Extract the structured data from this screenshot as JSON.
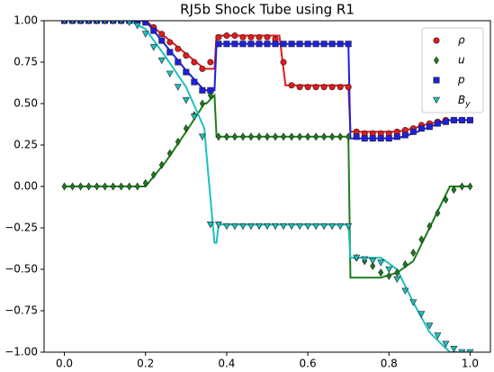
{
  "chart_data": {
    "type": "scatter",
    "title": "RJ5b Shock Tube using R1",
    "xlim": [
      -0.05,
      1.05
    ],
    "ylim": [
      -1,
      1
    ],
    "xticks": [
      {
        "value": 0,
        "label": "0.0"
      },
      {
        "value": 0.2,
        "label": "0.2"
      },
      {
        "value": 0.4,
        "label": "0.4"
      },
      {
        "value": 0.6,
        "label": "0.6"
      },
      {
        "value": 0.8,
        "label": "0.8"
      },
      {
        "value": 1,
        "label": "1.0"
      }
    ],
    "yticks": [
      {
        "value": -1,
        "label": "−1.00"
      },
      {
        "value": -0.75,
        "label": "−0.75"
      },
      {
        "value": -0.5,
        "label": "−0.50"
      },
      {
        "value": -0.25,
        "label": "−0.25"
      },
      {
        "value": 0,
        "label": "0.00"
      },
      {
        "value": 0.25,
        "label": "0.25"
      },
      {
        "value": 0.5,
        "label": "0.50"
      },
      {
        "value": 0.75,
        "label": "0.75"
      },
      {
        "value": 1,
        "label": "1.00"
      }
    ],
    "legend": "upper right",
    "x": [
      0,
      0.02,
      0.04,
      0.06,
      0.08,
      0.1,
      0.12,
      0.14,
      0.16,
      0.18,
      0.2,
      0.22,
      0.24,
      0.26,
      0.28,
      0.3,
      0.32,
      0.34,
      0.36,
      0.38,
      0.4,
      0.42,
      0.44,
      0.46,
      0.48,
      0.5,
      0.52,
      0.54,
      0.56,
      0.58,
      0.6,
      0.62,
      0.64,
      0.66,
      0.68,
      0.7,
      0.72,
      0.74,
      0.76,
      0.78,
      0.8,
      0.82,
      0.84,
      0.86,
      0.88,
      0.9,
      0.92,
      0.94,
      0.96,
      0.98,
      1
    ],
    "series": [
      {
        "name": "ρ",
        "color": "#e41a1c",
        "marker": "circle",
        "values": [
          1,
          1,
          1,
          1,
          1,
          1,
          1,
          1,
          1,
          1,
          0.99,
          0.96,
          0.92,
          0.87,
          0.83,
          0.79,
          0.75,
          0.71,
          0.75,
          0.9,
          0.91,
          0.91,
          0.9,
          0.9,
          0.9,
          0.9,
          0.89,
          0.75,
          0.61,
          0.6,
          0.6,
          0.6,
          0.6,
          0.6,
          0.6,
          0.6,
          0.33,
          0.32,
          0.32,
          0.32,
          0.32,
          0.33,
          0.34,
          0.35,
          0.37,
          0.38,
          0.39,
          0.4,
          0.4,
          0.4,
          0.4
        ]
      },
      {
        "name": "u",
        "color": "#1a7f1a",
        "marker": "diamond",
        "values": [
          0,
          0,
          0,
          0,
          0,
          0,
          0,
          0,
          0,
          0,
          0.02,
          0.07,
          0.13,
          0.2,
          0.27,
          0.35,
          0.43,
          0.5,
          0.55,
          0.3,
          0.3,
          0.3,
          0.3,
          0.3,
          0.3,
          0.3,
          0.3,
          0.3,
          0.3,
          0.3,
          0.3,
          0.3,
          0.3,
          0.3,
          0.3,
          0.3,
          -0.43,
          -0.45,
          -0.48,
          -0.52,
          -0.54,
          -0.52,
          -0.47,
          -0.4,
          -0.32,
          -0.24,
          -0.16,
          -0.08,
          -0.02,
          0,
          0
        ]
      },
      {
        "name": "p",
        "color": "#1f1fe0",
        "marker": "square",
        "values": [
          1,
          1,
          1,
          1,
          1,
          1,
          1,
          1,
          1,
          1,
          0.99,
          0.94,
          0.88,
          0.81,
          0.75,
          0.69,
          0.63,
          0.58,
          0.58,
          0.86,
          0.86,
          0.86,
          0.86,
          0.86,
          0.86,
          0.86,
          0.86,
          0.86,
          0.86,
          0.86,
          0.86,
          0.86,
          0.86,
          0.86,
          0.86,
          0.86,
          0.3,
          0.29,
          0.29,
          0.29,
          0.29,
          0.3,
          0.31,
          0.33,
          0.35,
          0.36,
          0.38,
          0.39,
          0.4,
          0.4,
          0.4
        ]
      },
      {
        "name": "B_y",
        "color": "#1fbfbf",
        "marker": "triangle",
        "values": [
          1,
          1,
          1,
          1,
          1,
          1,
          1,
          1,
          0.99,
          0.97,
          0.92,
          0.84,
          0.76,
          0.68,
          0.6,
          0.52,
          0.42,
          0.3,
          -0.23,
          -0.23,
          -0.24,
          -0.24,
          -0.24,
          -0.24,
          -0.24,
          -0.24,
          -0.24,
          -0.24,
          -0.24,
          -0.24,
          -0.24,
          -0.24,
          -0.24,
          -0.24,
          -0.24,
          -0.24,
          -0.43,
          -0.44,
          -0.45,
          -0.46,
          -0.5,
          -0.56,
          -0.63,
          -0.7,
          -0.77,
          -0.84,
          -0.9,
          -0.95,
          -0.98,
          -1,
          -1
        ]
      }
    ],
    "line_x": [
      0,
      0.16,
      0.2,
      0.25,
      0.3,
      0.345,
      0.35,
      0.37,
      0.375,
      0.38,
      0.53,
      0.545,
      0.7,
      0.705,
      0.78,
      0.82,
      0.86,
      0.9,
      0.95,
      1
    ],
    "lines": [
      {
        "color": "#e41a1c",
        "values": [
          1,
          1,
          1,
          0.9,
          0.8,
          0.71,
          0.71,
          0.71,
          0.91,
          0.91,
          0.91,
          0.61,
          0.61,
          0.33,
          0.33,
          0.33,
          0.35,
          0.38,
          0.4,
          0.4
        ]
      },
      {
        "color": "#1a7f1a",
        "values": [
          0,
          0,
          0,
          0.15,
          0.33,
          0.5,
          0.5,
          0.55,
          0.3,
          0.3,
          0.3,
          0.3,
          0.3,
          -0.55,
          -0.55,
          -0.52,
          -0.45,
          -0.25,
          0,
          0
        ]
      },
      {
        "color": "#1f1fe0",
        "values": [
          1,
          1,
          1,
          0.85,
          0.7,
          0.58,
          0.58,
          0.58,
          0.86,
          0.86,
          0.86,
          0.86,
          0.86,
          0.29,
          0.29,
          0.29,
          0.32,
          0.36,
          0.4,
          0.4
        ]
      },
      {
        "color": "#1fbfbf",
        "values": [
          1,
          1,
          0.95,
          0.78,
          0.6,
          0.35,
          0.2,
          -0.34,
          -0.34,
          -0.23,
          -0.23,
          -0.23,
          -0.23,
          -0.43,
          -0.43,
          -0.5,
          -0.7,
          -0.88,
          -1,
          -1
        ]
      }
    ]
  }
}
